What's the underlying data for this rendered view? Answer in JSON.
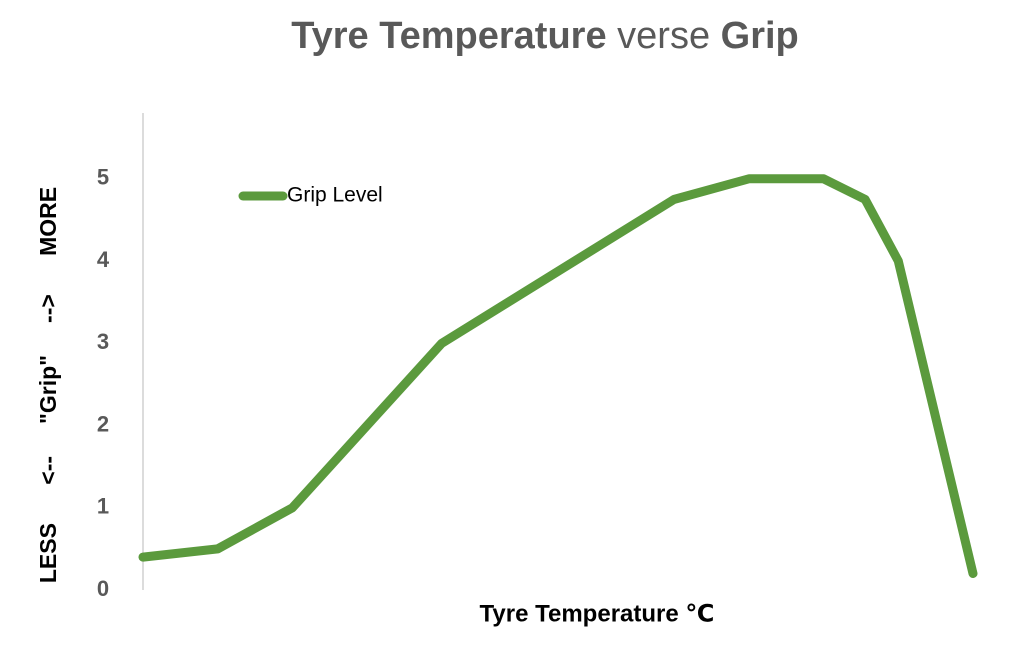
{
  "chart_data": {
    "type": "line",
    "title_parts": [
      {
        "text": "Tyre Temperature",
        "bold": true
      },
      {
        "text": "verse",
        "bold": false
      },
      {
        "text": "Grip",
        "bold": true
      }
    ],
    "xlabel": "Tyre Temperature ℃",
    "ylabel": "LESS      <--     \"Grip\"     -->      MORE",
    "x": [
      0,
      9,
      18,
      36,
      64,
      73,
      82,
      87,
      91,
      100
    ],
    "xlim": [
      0,
      100
    ],
    "ylim": [
      0,
      5.8
    ],
    "yticks": [
      0,
      1,
      2,
      3,
      4,
      5
    ],
    "grid": false,
    "legend": "top-left",
    "series": [
      {
        "name": "Grip Level",
        "color": "#5b9a3d",
        "values": [
          0.4,
          0.5,
          1,
          3,
          4.75,
          5,
          5,
          4.75,
          4,
          0.2
        ]
      }
    ]
  }
}
